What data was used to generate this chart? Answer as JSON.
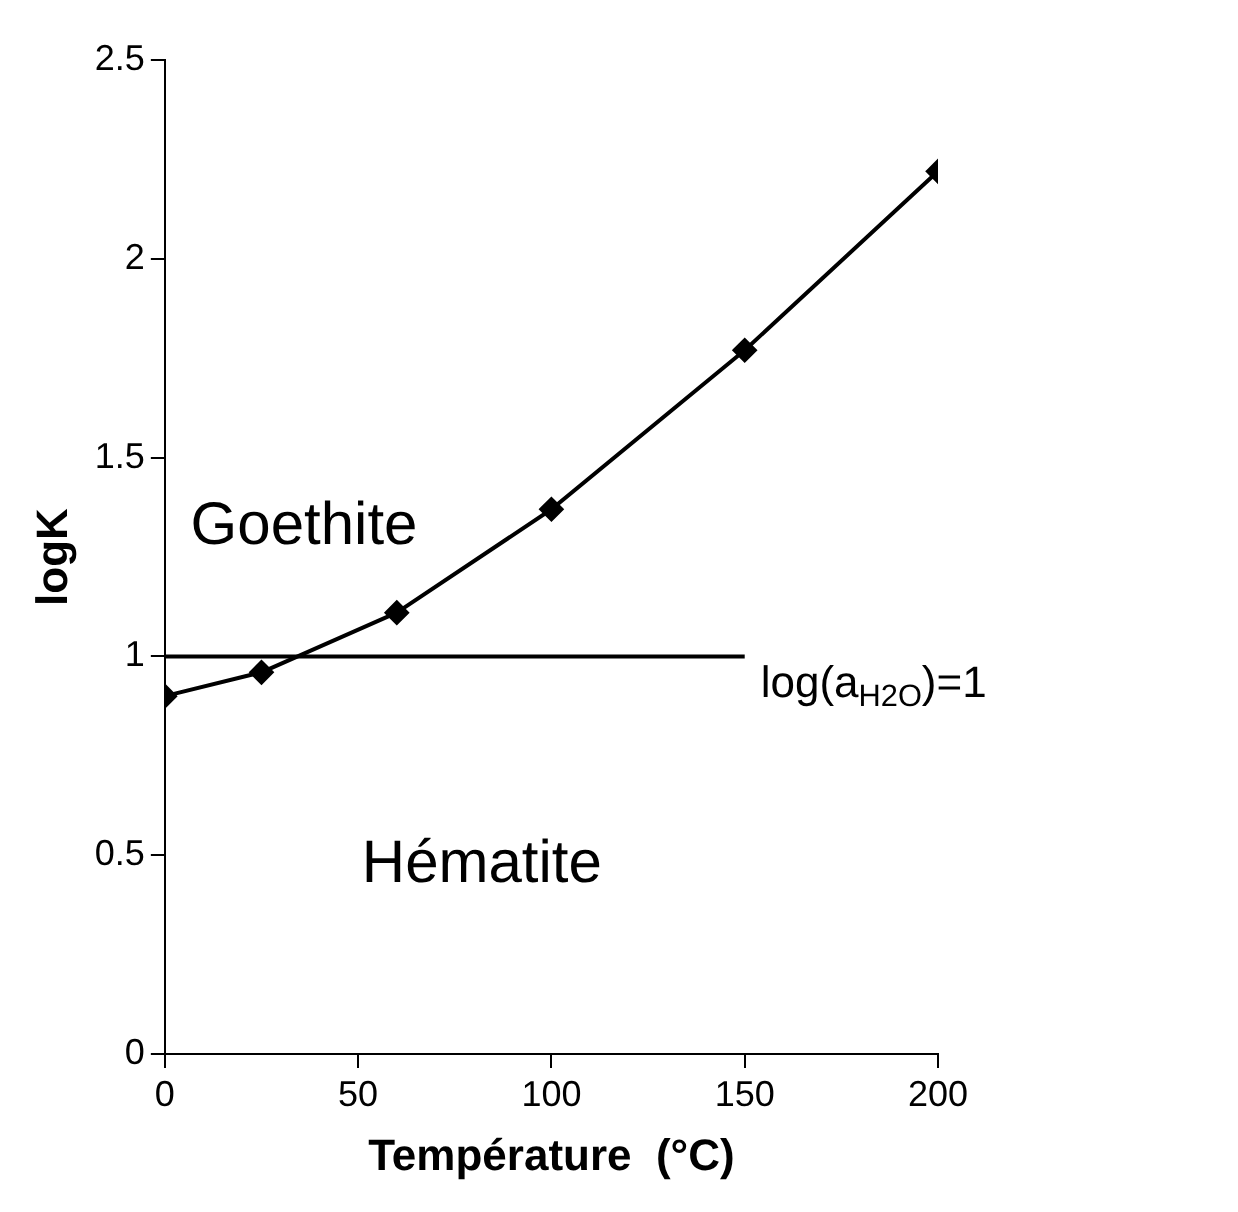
{
  "chart_data": {
    "type": "line",
    "xlabel": "Température  (°C)",
    "ylabel": "logK",
    "xlim": [
      0,
      200
    ],
    "xticks": [
      0,
      50,
      100,
      150,
      200
    ],
    "ylim": [
      0,
      2.5
    ],
    "yticks": [
      0,
      {
        "value": 0.5,
        "label": "0.5"
      },
      1,
      {
        "value": 1.5,
        "label": "1.5"
      },
      2,
      {
        "value": 2.5,
        "label": "2.5"
      }
    ],
    "grid": false,
    "legend": false,
    "series": [
      {
        "color": "#000000",
        "x": [
          0,
          25,
          60,
          100,
          150,
          200
        ],
        "values": [
          0.9,
          0.96,
          1.11,
          1.37,
          1.77,
          2.22
        ],
        "marker": "diamond"
      },
      {
        "name": "log(a$_{H2O}$)=1",
        "color": "#000000",
        "x": [
          0,
          150
        ],
        "values": [
          1,
          1
        ],
        "marker": "none"
      }
    ],
    "annotations": [
      "Goethite",
      "Hématite"
    ]
  }
}
